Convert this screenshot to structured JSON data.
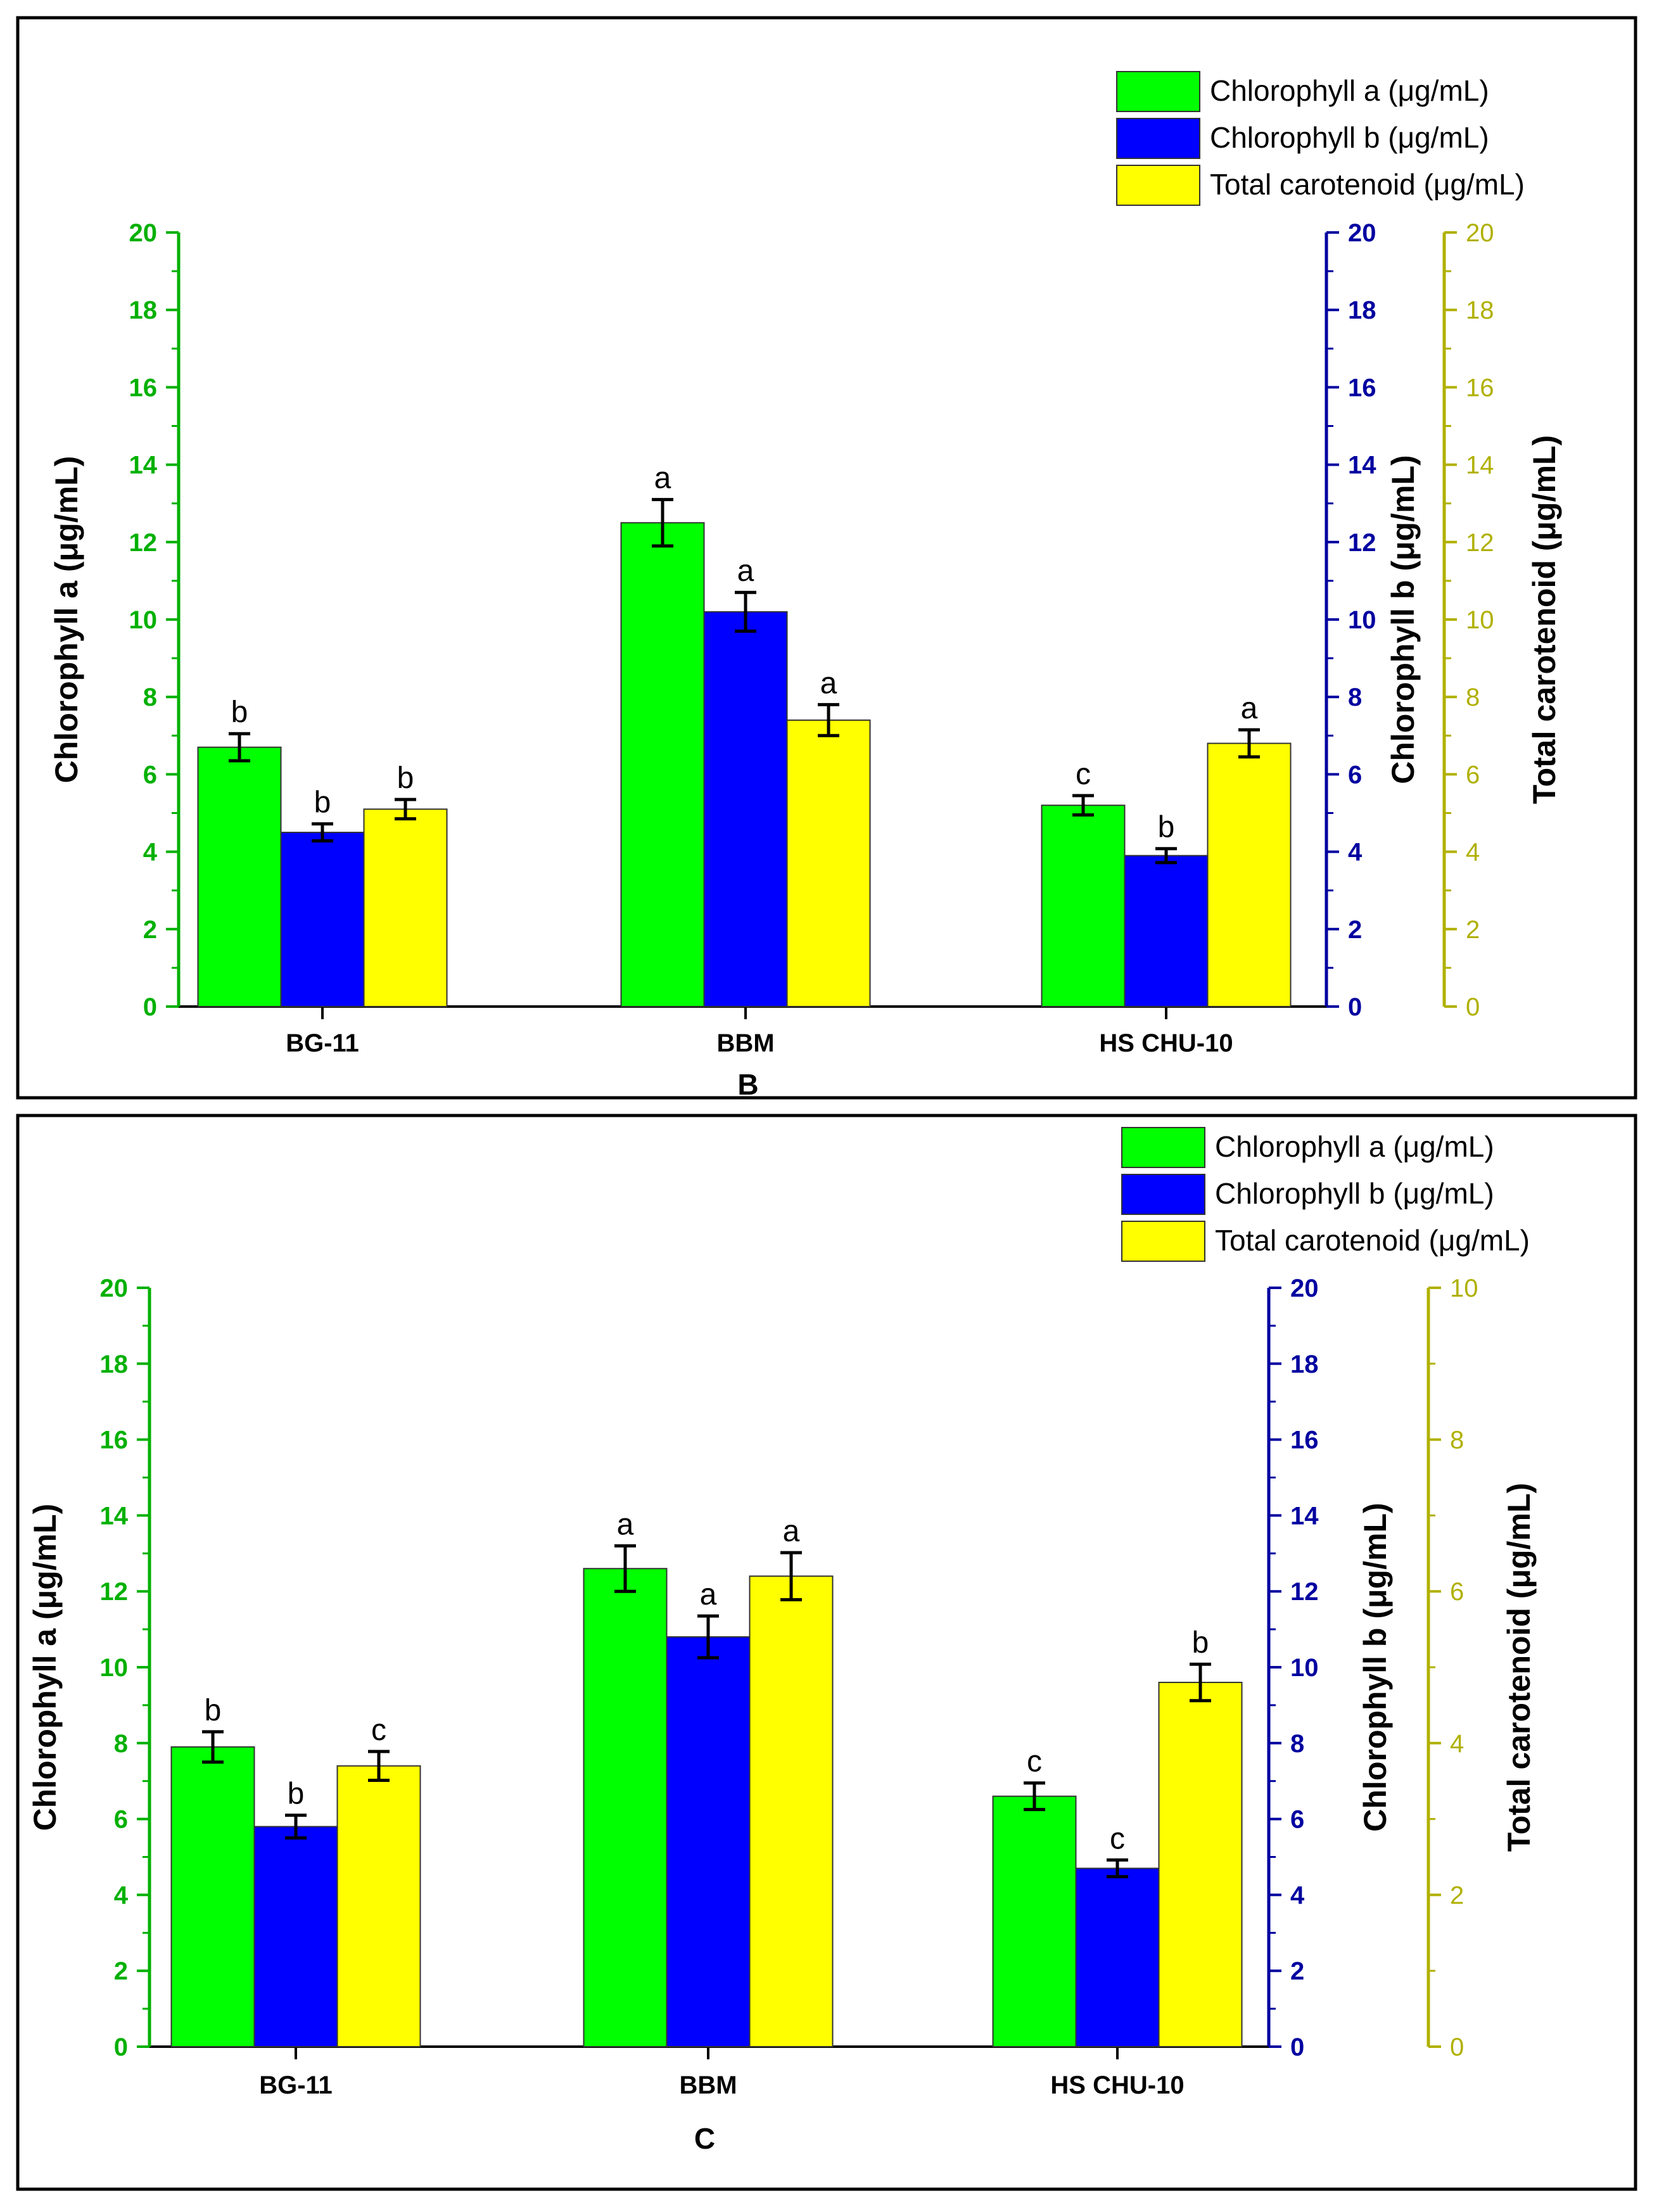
{
  "colors": {
    "chl_a": "#00ff00",
    "chl_b": "#0000ff",
    "carot": "#ffff00",
    "axis_a": "#00b000",
    "axis_b": "#0000a0",
    "axis_c": "#b0b000",
    "frame": "#000000"
  },
  "chart_data": [
    {
      "panel": "B",
      "type": "bar",
      "categories": [
        "BG-11",
        "BBM",
        "HS CHU-10"
      ],
      "series": [
        {
          "name": "Chlorophyll a (μg/mL)",
          "values": [
            6.7,
            12.5,
            5.2
          ],
          "errors": [
            0.35,
            0.6,
            0.25
          ],
          "letters": [
            "b",
            "a",
            "c"
          ]
        },
        {
          "name": "Chlorophyll b (μg/mL)",
          "values": [
            4.5,
            10.2,
            3.9
          ],
          "errors": [
            0.22,
            0.5,
            0.18
          ],
          "letters": [
            "b",
            "a",
            "b"
          ]
        },
        {
          "name": "Total carotenoid (μg/mL)",
          "values": [
            5.1,
            7.4,
            6.8
          ],
          "errors": [
            0.25,
            0.4,
            0.35
          ],
          "letters": [
            "b",
            "a",
            "a"
          ]
        }
      ],
      "axes": [
        {
          "label": "Chlorophyll a (μg/mL)",
          "range": [
            0,
            20
          ],
          "ticks": [
            "0",
            "2",
            "4",
            "6",
            "8",
            "10",
            "12",
            "14",
            "16",
            "18",
            "20"
          ]
        },
        {
          "label": "Chlorophyll b (μg/mL)",
          "range": [
            0,
            20
          ],
          "ticks": [
            "0",
            "2",
            "4",
            "6",
            "8",
            "10",
            "12",
            "14",
            "16",
            "18",
            "20"
          ]
        },
        {
          "label": "Total carotenoid (μg/mL)",
          "range": [
            0,
            20
          ],
          "ticks": [
            "0",
            "2",
            "4",
            "6",
            "8",
            "10",
            "12",
            "14",
            "16",
            "18",
            "20"
          ]
        }
      ],
      "legend": "top-right"
    },
    {
      "panel": "C",
      "type": "bar",
      "categories": [
        "BG-11",
        "BBM",
        "HS CHU-10"
      ],
      "series": [
        {
          "name": "Chlorophyll a (μg/mL)",
          "values": [
            7.9,
            12.6,
            6.6
          ],
          "errors": [
            0.4,
            0.6,
            0.35
          ],
          "letters": [
            "b",
            "a",
            "c"
          ]
        },
        {
          "name": "Chlorophyll b (μg/mL)",
          "values": [
            5.8,
            10.8,
            4.7
          ],
          "errors": [
            0.3,
            0.55,
            0.22
          ],
          "letters": [
            "b",
            "a",
            "c"
          ]
        },
        {
          "name": "Total carotenoid (μg/mL)",
          "values": [
            3.7,
            6.2,
            4.8
          ],
          "errors": [
            0.19,
            0.31,
            0.24
          ],
          "letters": [
            "c",
            "a",
            "b"
          ]
        }
      ],
      "axes": [
        {
          "label": "Chlorophyll a (μg/mL)",
          "range": [
            0,
            20
          ],
          "ticks": [
            "0",
            "2",
            "4",
            "6",
            "8",
            "10",
            "12",
            "14",
            "16",
            "18",
            "20"
          ]
        },
        {
          "label": "Chlorophyll b (μg/mL)",
          "range": [
            0,
            20
          ],
          "ticks": [
            "0",
            "2",
            "4",
            "6",
            "8",
            "10",
            "12",
            "14",
            "16",
            "18",
            "20"
          ]
        },
        {
          "label": "Total carotenoid (μg/mL)",
          "range": [
            0,
            10
          ],
          "ticks": [
            "0",
            "2",
            "4",
            "6",
            "8",
            "10"
          ]
        }
      ],
      "legend": "top-right"
    }
  ]
}
